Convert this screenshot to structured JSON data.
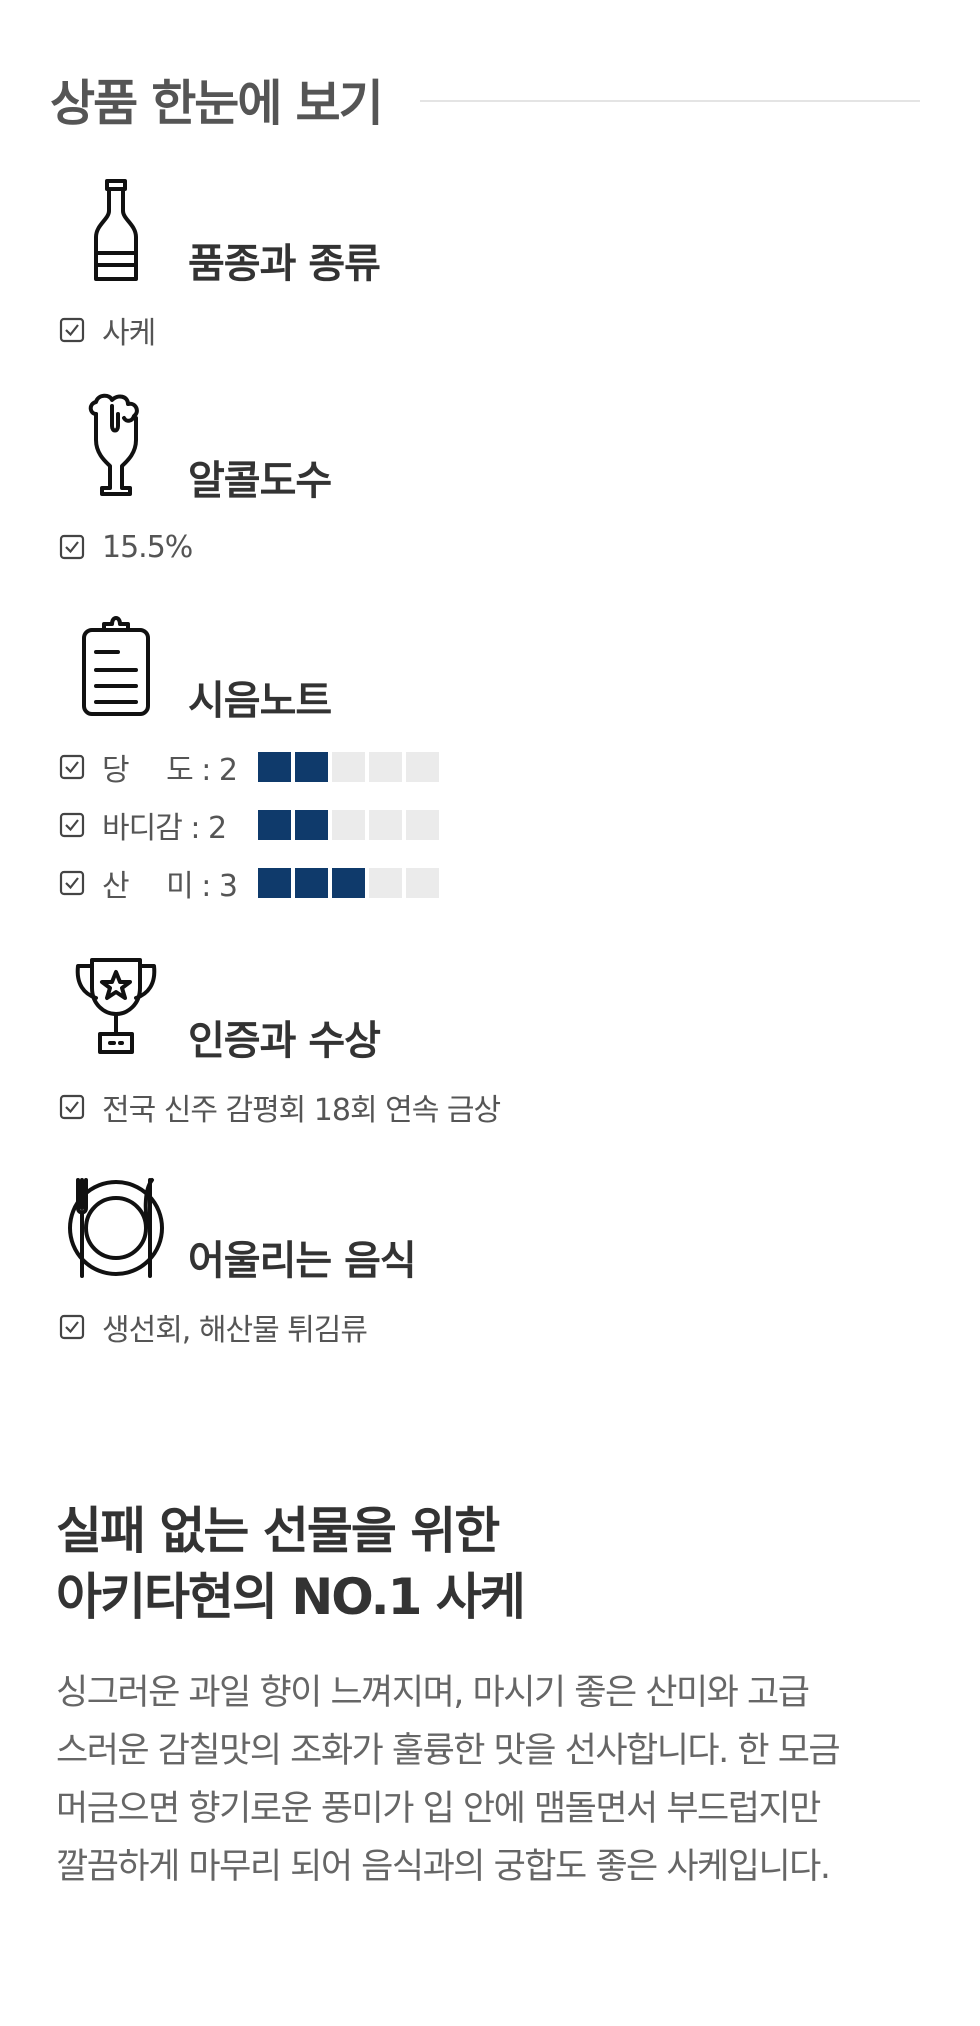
{
  "header": {
    "title": "상품 한눈에 보기"
  },
  "sections": {
    "variety": {
      "title": "품종과 종류",
      "icon": "bottle-icon",
      "items": [
        "사케"
      ]
    },
    "abv": {
      "title": "알콜도수",
      "icon": "beer-glass-icon",
      "items": [
        "15.5%"
      ]
    },
    "tasting": {
      "title": "시음노트",
      "icon": "clipboard-icon",
      "notes": [
        {
          "label": "당　 도 : 2",
          "value": 2,
          "max": 5
        },
        {
          "label": "바디감 : 2",
          "value": 2,
          "max": 5
        },
        {
          "label": "산　 미 : 3",
          "value": 3,
          "max": 5
        }
      ]
    },
    "awards": {
      "title": "인증과 수상",
      "icon": "trophy-icon",
      "items": [
        "전국 신주 감평회 18회 연속 금상"
      ]
    },
    "pairing": {
      "title": "어울리는 음식",
      "icon": "plate-cutlery-icon",
      "items": [
        "생선회, 해산물 튀김류"
      ]
    }
  },
  "promo": {
    "title_lines": [
      "실패 없는 선물을 위한",
      "아키타현의 NO.1 사케"
    ],
    "body_lines": [
      "싱그러운 과일 향이 느껴지며, 마시기 좋은 산미와 고급",
      "스러운 감칠맛의 조화가 훌륭한 맛을 선사합니다. 한 모금",
      "머금으면 향기로운 풍미가 입 안에 맴돌면서 부드럽지만",
      "깔끔하게 마무리 되어 음식과의 궁합도 좋은 사케입니다."
    ]
  },
  "colors": {
    "accent": "#0f3a6b",
    "bar_empty": "#ebebeb",
    "rule": "#e4e4e4"
  }
}
